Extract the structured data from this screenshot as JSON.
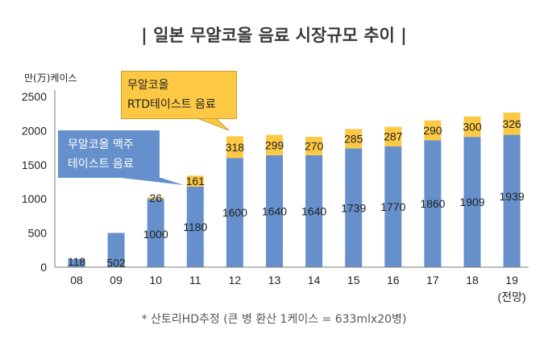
{
  "title": "| 일본 무알코올 음료 시장규모 추이 |",
  "unit_label": "만(万)케이스",
  "footnote": "* 산토리HD추정 (큰 병 환산 1케이스 = 633mlx20병)",
  "callouts": {
    "beer_taste": [
      "무알코올 맥주",
      "테이스트 음료"
    ],
    "rtd_taste": [
      "무알코올",
      "RTD테이스트 음료"
    ]
  },
  "colors": {
    "beer_taste": "#6690cb",
    "rtd_taste": "#fdc944",
    "callout_blue": "#6690cb",
    "callout_yellow": "#fdc944"
  },
  "chart_data": {
    "type": "bar",
    "stacked": true,
    "title": "일본 무알코올 음료 시장규모 추이",
    "xlabel": "",
    "ylabel": "만(万)케이스",
    "ylim": [
      0,
      2500
    ],
    "yticks": [
      0,
      500,
      1000,
      1500,
      2000,
      2500
    ],
    "grid": false,
    "categories": [
      "08",
      "09",
      "10",
      "11",
      "12",
      "13",
      "14",
      "15",
      "16",
      "17",
      "18",
      "19"
    ],
    "category_notes": {
      "19": "(전망)"
    },
    "series": [
      {
        "name": "무알코올 맥주 테이스트 음료",
        "values": [
          118,
          502,
          1000,
          1180,
          1600,
          1640,
          1640,
          1739,
          1770,
          1860,
          1909,
          1939
        ]
      },
      {
        "name": "무알코올 RTD테이스트 음료",
        "values": [
          null,
          null,
          26,
          161,
          318,
          299,
          270,
          285,
          287,
          290,
          300,
          326
        ]
      }
    ]
  }
}
